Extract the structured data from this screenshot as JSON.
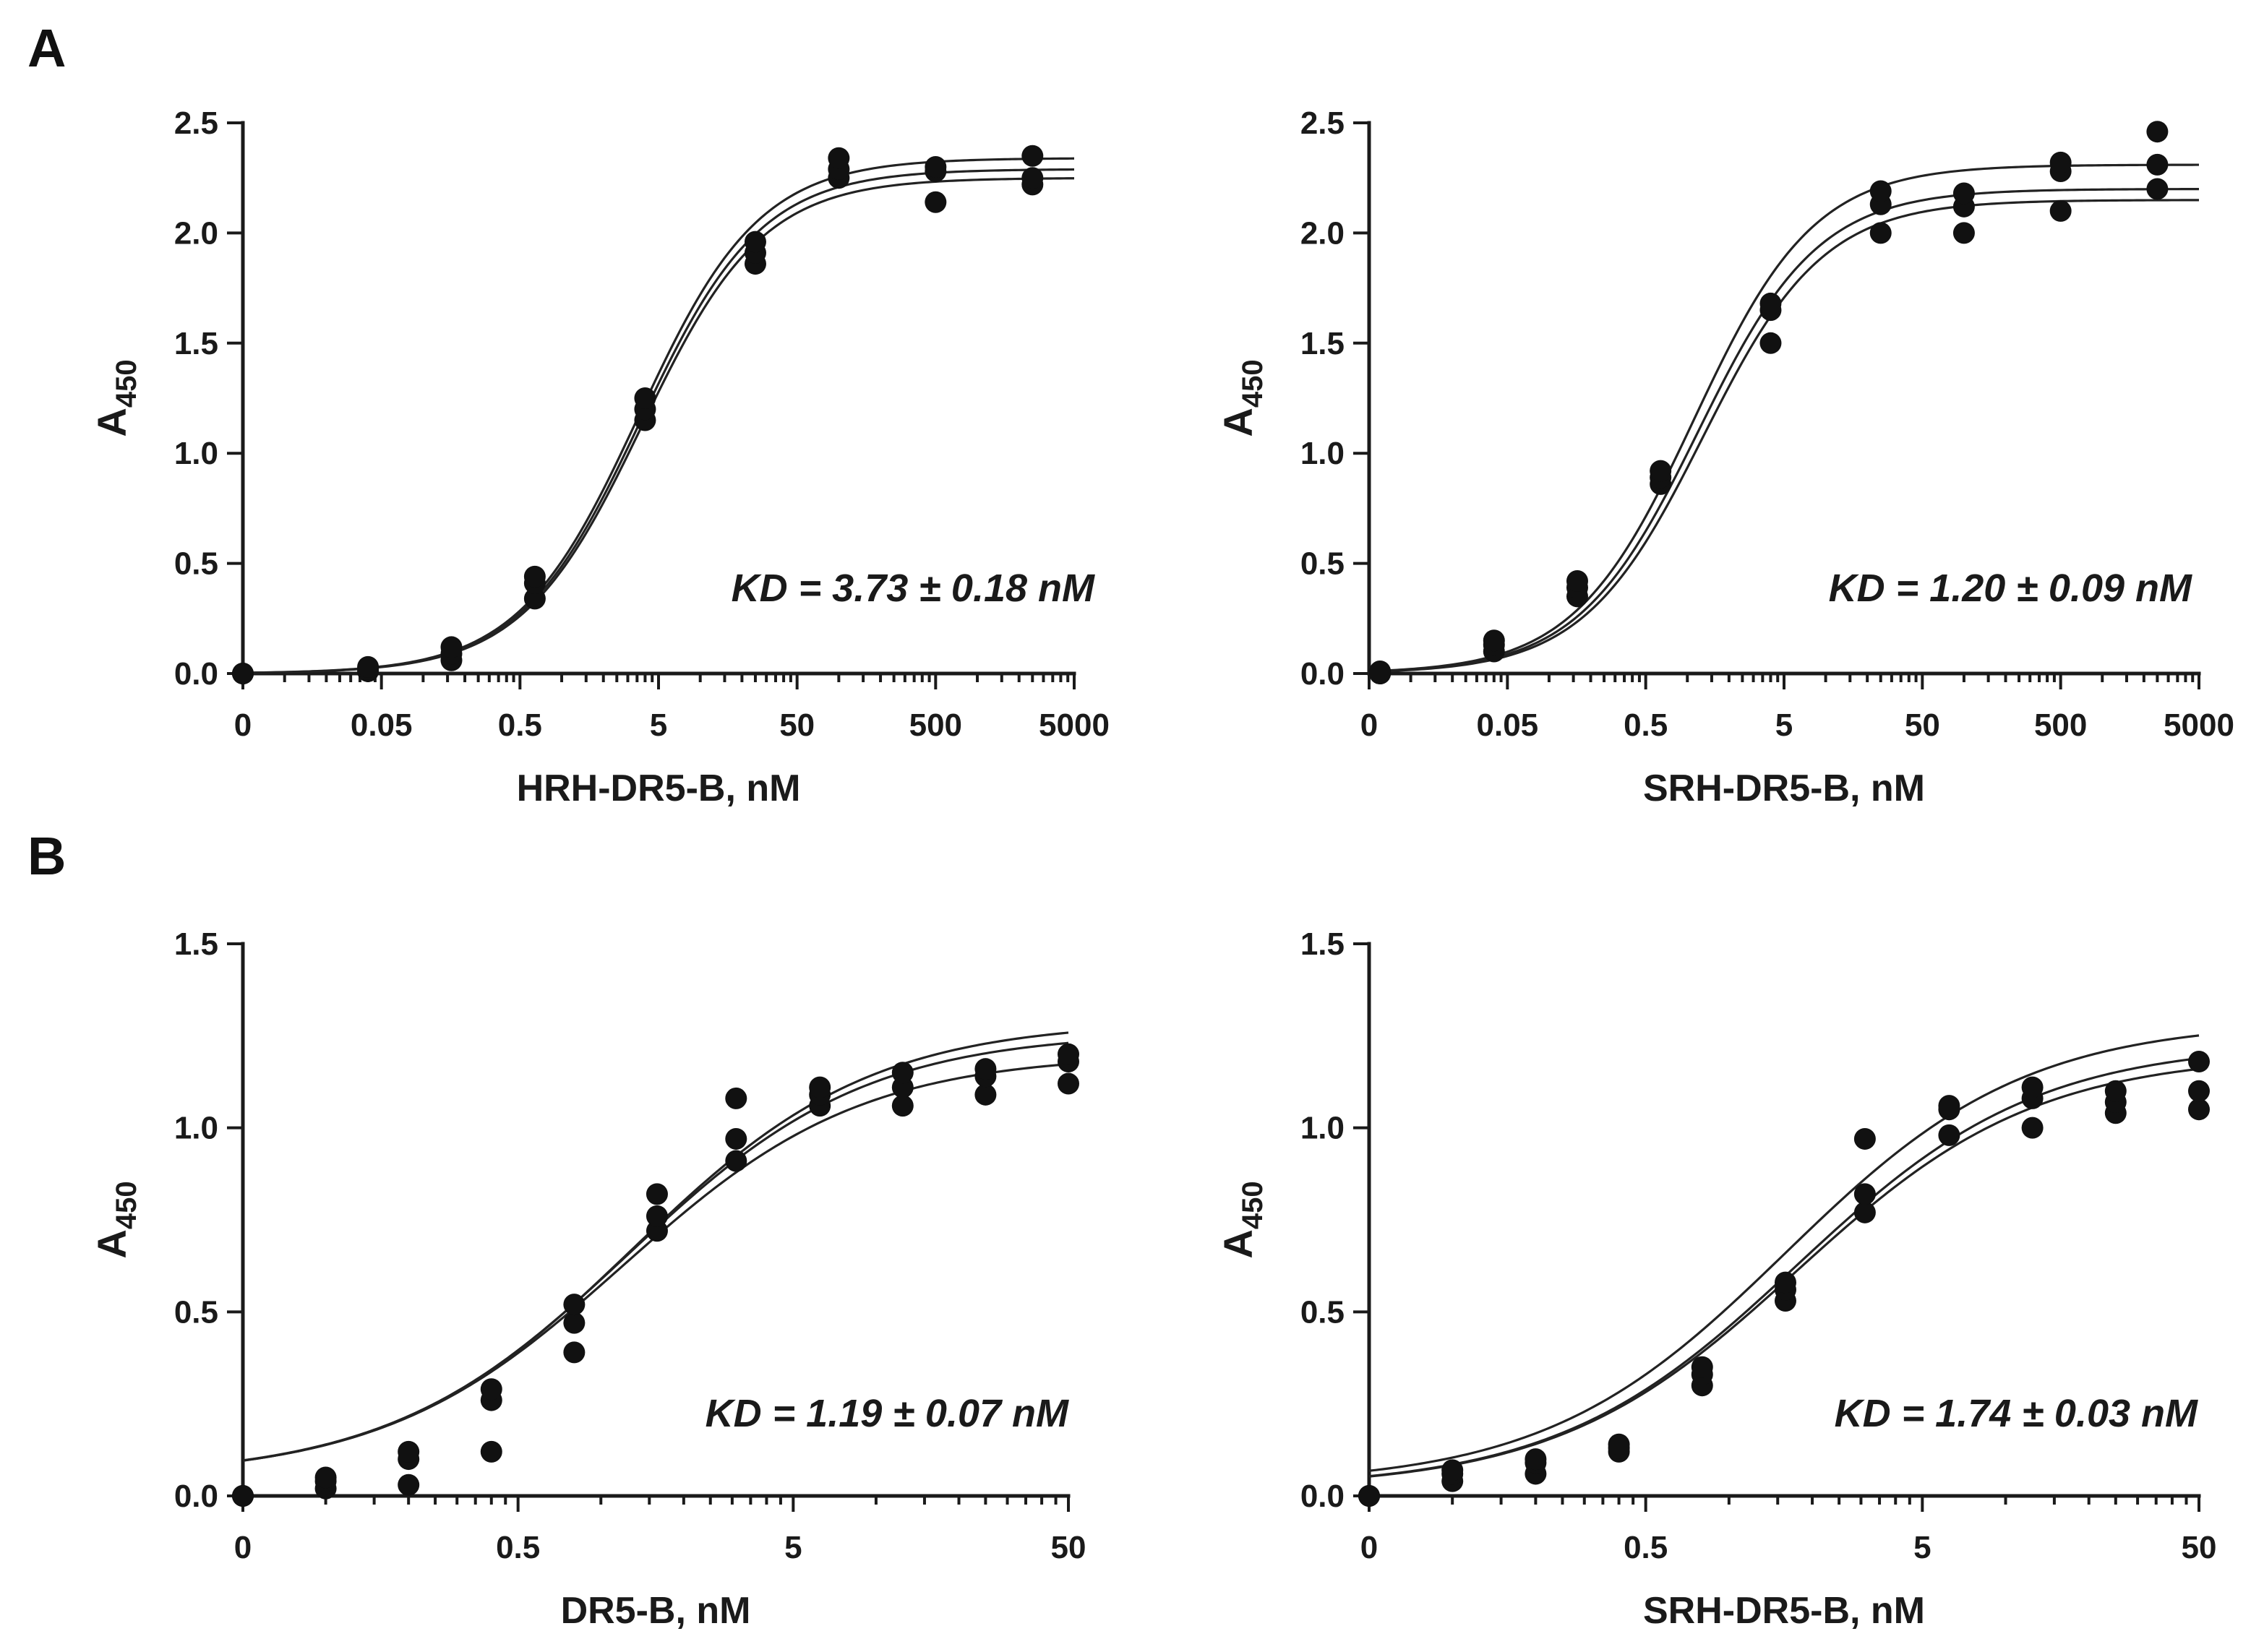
{
  "figure": {
    "panel_labels": [
      "A",
      "B"
    ]
  },
  "chart_data": [
    {
      "type": "scatter",
      "id": "A1",
      "title": "",
      "xlabel": "HRH-DR5-B, nM",
      "ylabel": "A450",
      "ylabel_main": "A",
      "ylabel_sub": "450",
      "xscale": "log",
      "xlim": [
        0.005,
        5000
      ],
      "ylim": [
        0,
        2.5
      ],
      "x_tick_labels": [
        "0",
        "0.05",
        "0.5",
        "5",
        "50",
        "500",
        "5000"
      ],
      "y_tick_labels": [
        "0.0",
        "0.5",
        "1.0",
        "1.5",
        "2.0",
        "2.5"
      ],
      "annotation": "KD = 3.73 ± 0.18 nM",
      "points": [
        [
          0.005,
          0.0
        ],
        [
          0.005,
          0.0
        ],
        [
          0.005,
          0.0
        ],
        [
          0.04,
          0.01
        ],
        [
          0.04,
          0.02
        ],
        [
          0.04,
          0.03
        ],
        [
          0.16,
          0.06
        ],
        [
          0.16,
          0.09
        ],
        [
          0.16,
          0.12
        ],
        [
          0.64,
          0.34
        ],
        [
          0.64,
          0.41
        ],
        [
          0.64,
          0.44
        ],
        [
          4.0,
          1.15
        ],
        [
          4.0,
          1.2
        ],
        [
          4.0,
          1.25
        ],
        [
          25,
          1.86
        ],
        [
          25,
          1.91
        ],
        [
          25,
          1.96
        ],
        [
          100,
          2.25
        ],
        [
          100,
          2.29
        ],
        [
          100,
          2.34
        ],
        [
          500,
          2.14
        ],
        [
          500,
          2.28
        ],
        [
          500,
          2.3
        ],
        [
          2500,
          2.22
        ],
        [
          2500,
          2.25
        ],
        [
          2500,
          2.35
        ]
      ],
      "fits": [
        {
          "top": 2.25,
          "ec50": 3.8,
          "hill": 1.0
        },
        {
          "top": 2.29,
          "ec50": 3.7,
          "hill": 1.0
        },
        {
          "top": 2.34,
          "ec50": 3.6,
          "hill": 1.0
        }
      ]
    },
    {
      "type": "scatter",
      "id": "A2",
      "title": "",
      "xlabel": "SRH-DR5-B, nM",
      "ylabel": "A450",
      "ylabel_main": "A",
      "ylabel_sub": "450",
      "xscale": "log",
      "xlim": [
        0.005,
        5000
      ],
      "ylim": [
        0,
        2.5
      ],
      "x_tick_labels": [
        "0",
        "0.05",
        "0.5",
        "5",
        "50",
        "500",
        "5000"
      ],
      "y_tick_labels": [
        "0.0",
        "0.5",
        "1.0",
        "1.5",
        "2.0",
        "2.5"
      ],
      "annotation": "KD = 1.20 ± 0.09 nM",
      "points": [
        [
          0.006,
          0.0
        ],
        [
          0.006,
          0.01
        ],
        [
          0.006,
          0.0
        ],
        [
          0.04,
          0.1
        ],
        [
          0.04,
          0.13
        ],
        [
          0.04,
          0.15
        ],
        [
          0.16,
          0.35
        ],
        [
          0.16,
          0.39
        ],
        [
          0.16,
          0.42
        ],
        [
          0.64,
          0.86
        ],
        [
          0.64,
          0.89
        ],
        [
          0.64,
          0.92
        ],
        [
          4.0,
          1.5
        ],
        [
          4.0,
          1.65
        ],
        [
          4.0,
          1.68
        ],
        [
          25,
          2.0
        ],
        [
          25,
          2.13
        ],
        [
          25,
          2.19
        ],
        [
          100,
          2.0
        ],
        [
          100,
          2.12
        ],
        [
          100,
          2.18
        ],
        [
          500,
          2.1
        ],
        [
          500,
          2.28
        ],
        [
          500,
          2.32
        ],
        [
          2500,
          2.2
        ],
        [
          2500,
          2.31
        ],
        [
          2500,
          2.46
        ]
      ],
      "fits": [
        {
          "top": 2.15,
          "ec50": 1.3,
          "hill": 1.0
        },
        {
          "top": 2.2,
          "ec50": 1.2,
          "hill": 1.0
        },
        {
          "top": 2.31,
          "ec50": 1.12,
          "hill": 1.0
        }
      ]
    },
    {
      "type": "scatter",
      "id": "B1",
      "title": "",
      "xlabel": "DR5-B, nM",
      "ylabel": "A450",
      "ylabel_main": "A",
      "ylabel_sub": "450",
      "xscale": "log",
      "xlim": [
        0.05,
        50
      ],
      "ylim": [
        0,
        1.5
      ],
      "x_tick_labels": [
        "0",
        "0.5",
        "5",
        "50"
      ],
      "y_tick_labels": [
        "0.0",
        "0.5",
        "1.0",
        "1.5"
      ],
      "annotation": "KD = 1.19 ± 0.07 nM",
      "points": [
        [
          0.05,
          0.0
        ],
        [
          0.05,
          0.0
        ],
        [
          0.05,
          0.0
        ],
        [
          0.1,
          0.02
        ],
        [
          0.1,
          0.04
        ],
        [
          0.1,
          0.05
        ],
        [
          0.2,
          0.03
        ],
        [
          0.2,
          0.1
        ],
        [
          0.2,
          0.12
        ],
        [
          0.4,
          0.12
        ],
        [
          0.4,
          0.26
        ],
        [
          0.4,
          0.29
        ],
        [
          0.8,
          0.39
        ],
        [
          0.8,
          0.47
        ],
        [
          0.8,
          0.52
        ],
        [
          1.6,
          0.72
        ],
        [
          1.6,
          0.76
        ],
        [
          1.6,
          0.82
        ],
        [
          3.1,
          0.91
        ],
        [
          3.1,
          0.97
        ],
        [
          3.1,
          1.08
        ],
        [
          6.25,
          1.06
        ],
        [
          6.25,
          1.09
        ],
        [
          6.25,
          1.11
        ],
        [
          12.5,
          1.06
        ],
        [
          12.5,
          1.11
        ],
        [
          12.5,
          1.15
        ],
        [
          25,
          1.09
        ],
        [
          25,
          1.14
        ],
        [
          25,
          1.16
        ],
        [
          50,
          1.12
        ],
        [
          50,
          1.18
        ],
        [
          50,
          1.2
        ]
      ],
      "fits": [
        {
          "top": 1.2,
          "ec50": 1.2,
          "hill": 1.0,
          "bottom": 0.05
        },
        {
          "top": 1.26,
          "ec50": 1.25,
          "hill": 1.0,
          "bottom": 0.05
        },
        {
          "top": 1.29,
          "ec50": 1.3,
          "hill": 1.0,
          "bottom": 0.05
        }
      ]
    },
    {
      "type": "scatter",
      "id": "B2",
      "title": "",
      "xlabel": "SRH-DR5-B, nM",
      "ylabel": "A450",
      "ylabel_main": "A",
      "ylabel_sub": "450",
      "xscale": "log",
      "xlim": [
        0.05,
        50
      ],
      "ylim": [
        0,
        1.5
      ],
      "x_tick_labels": [
        "0",
        "0.5",
        "5",
        "50"
      ],
      "y_tick_labels": [
        "0.0",
        "0.5",
        "1.0",
        "1.5"
      ],
      "annotation": "KD = 1.74 ± 0.03 nM",
      "points": [
        [
          0.05,
          0.0
        ],
        [
          0.05,
          0.0
        ],
        [
          0.05,
          0.0
        ],
        [
          0.1,
          0.04
        ],
        [
          0.1,
          0.06
        ],
        [
          0.1,
          0.07
        ],
        [
          0.2,
          0.06
        ],
        [
          0.2,
          0.09
        ],
        [
          0.2,
          0.1
        ],
        [
          0.4,
          0.12
        ],
        [
          0.4,
          0.13
        ],
        [
          0.4,
          0.14
        ],
        [
          0.8,
          0.3
        ],
        [
          0.8,
          0.33
        ],
        [
          0.8,
          0.35
        ],
        [
          1.6,
          0.53
        ],
        [
          1.6,
          0.56
        ],
        [
          1.6,
          0.58
        ],
        [
          3.1,
          0.77
        ],
        [
          3.1,
          0.82
        ],
        [
          3.1,
          0.97
        ],
        [
          6.25,
          0.98
        ],
        [
          6.25,
          1.05
        ],
        [
          6.25,
          1.06
        ],
        [
          12.5,
          1.0
        ],
        [
          12.5,
          1.08
        ],
        [
          12.5,
          1.11
        ],
        [
          25,
          1.04
        ],
        [
          25,
          1.07
        ],
        [
          25,
          1.1
        ],
        [
          50,
          1.05
        ],
        [
          50,
          1.1
        ],
        [
          50,
          1.18
        ]
      ],
      "fits": [
        {
          "top": 1.2,
          "ec50": 1.75,
          "hill": 1.0,
          "bottom": 0.02
        },
        {
          "top": 1.23,
          "ec50": 1.75,
          "hill": 1.0,
          "bottom": 0.02
        },
        {
          "top": 1.29,
          "ec50": 1.6,
          "hill": 1.0,
          "bottom": 0.03
        }
      ]
    }
  ]
}
